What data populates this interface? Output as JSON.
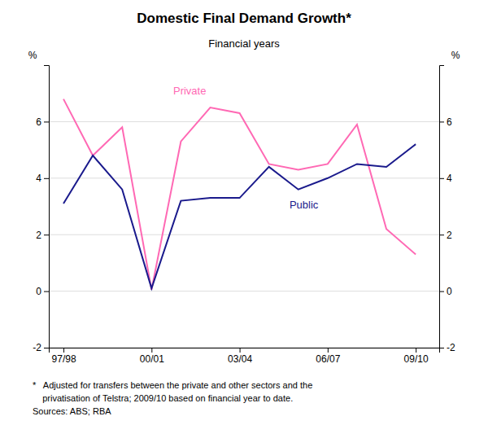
{
  "chart_data": {
    "type": "line",
    "title": "Domestic Final Demand Growth*",
    "subtitle": "Financial years",
    "ylabel": "%",
    "y2label": "%",
    "x": [
      1997.5,
      1998.5,
      1999.5,
      2000.5,
      2001.5,
      2002.5,
      2003.5,
      2004.5,
      2005.5,
      2006.5,
      2007.5,
      2008.5,
      2009.5
    ],
    "xlim": [
      1997.0,
      2010.3
    ],
    "xticks": [
      {
        "value": 1997.5,
        "label": "97/98"
      },
      {
        "value": 2000.5,
        "label": "00/01"
      },
      {
        "value": 2003.5,
        "label": "03/04"
      },
      {
        "value": 2006.5,
        "label": "06/07"
      },
      {
        "value": 2009.5,
        "label": "09/10"
      }
    ],
    "ylim": [
      -2,
      8
    ],
    "yticks": [
      -2,
      0,
      2,
      4,
      6
    ],
    "y2lim": [
      -2,
      8
    ],
    "y2ticks": [
      -2,
      0,
      2,
      4,
      6
    ],
    "grid": true,
    "series": [
      {
        "color": "#FF69B4",
        "values": [
          6.8,
          4.8,
          5.8,
          0.05,
          5.3,
          6.5,
          6.3,
          4.5,
          4.3,
          4.5,
          5.9,
          2.2,
          1.3
        ]
      },
      {
        "color": "#1a1a8c",
        "values": [
          3.1,
          4.8,
          3.6,
          0.1,
          3.2,
          3.3,
          3.3,
          4.4,
          3.6,
          4.0,
          4.5,
          4.4,
          5.2
        ]
      }
    ],
    "annotations": [
      {
        "text": "Private",
        "x": 2001.8,
        "y": 6.85,
        "color": "#FF69B4"
      },
      {
        "text": "Public",
        "x": 2005.2,
        "y": 3.05,
        "color": "#1a1a8c"
      }
    ],
    "footnotes": [
      "*   Adjusted for transfers between the private and other sectors and the",
      "    privatisation of Telstra; 2009/10 based on financial year to date.",
      "Sources: ABS; RBA"
    ]
  }
}
